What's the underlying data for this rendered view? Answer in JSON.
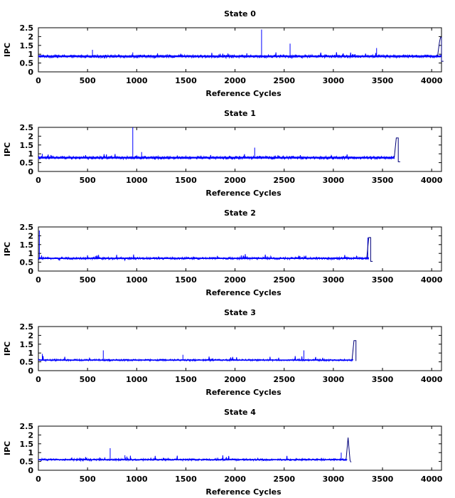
{
  "chart_data": [
    {
      "type": "line",
      "title": "State 0",
      "xlabel": "Reference Cycles",
      "ylabel": "IPC",
      "xlim": [
        0,
        4100
      ],
      "ylim": [
        0,
        2.5
      ],
      "xticks": [
        0,
        500,
        1000,
        1500,
        2000,
        2500,
        3000,
        3500,
        4000
      ],
      "yticks": [
        0,
        0.5,
        1,
        1.5,
        2,
        2.5
      ],
      "series": [
        {
          "name": "IPC",
          "color": "#0000ff",
          "x_end": 4100,
          "base": 0.88,
          "spread": 0.08,
          "spikes": [
            [
              2270,
              2.4
            ],
            [
              2560,
              1.6
            ],
            [
              3440,
              1.35
            ],
            [
              550,
              1.25
            ],
            [
              960,
              1.1
            ]
          ],
          "tail": [
            [
              4060,
              0.9
            ],
            [
              4080,
              1.7
            ],
            [
              4090,
              1.95
            ],
            [
              4100,
              1.95
            ],
            [
              4100,
              0.6
            ],
            [
              4120,
              0.6
            ]
          ]
        }
      ]
    },
    {
      "type": "line",
      "title": "State 1",
      "xlabel": "Reference Cycles",
      "ylabel": "IPC",
      "xlim": [
        0,
        4100
      ],
      "ylim": [
        0,
        2.5
      ],
      "xticks": [
        0,
        500,
        1000,
        1500,
        2000,
        2500,
        3000,
        3500,
        4000
      ],
      "yticks": [
        0,
        0.5,
        1,
        1.5,
        2,
        2.5
      ],
      "series": [
        {
          "name": "IPC",
          "color": "#0000ff",
          "x_end": 3620,
          "base": 0.78,
          "spread": 0.08,
          "spikes": [
            [
              960,
              2.5
            ],
            [
              2200,
              1.35
            ],
            [
              1050,
              1.1
            ],
            [
              40,
              1.0
            ]
          ],
          "tail": [
            [
              3620,
              0.8
            ],
            [
              3640,
              1.9
            ],
            [
              3660,
              1.9
            ],
            [
              3660,
              0.55
            ],
            [
              3680,
              0.55
            ]
          ]
        }
      ]
    },
    {
      "type": "line",
      "title": "State 2",
      "xlabel": "Reference Cycles",
      "ylabel": "IPC",
      "xlim": [
        0,
        4100
      ],
      "ylim": [
        0,
        2.5
      ],
      "xticks": [
        0,
        500,
        1000,
        1500,
        2000,
        2500,
        3000,
        3500,
        4000
      ],
      "yticks": [
        0,
        0.5,
        1,
        1.5,
        2,
        2.5
      ],
      "series": [
        {
          "name": "IPC",
          "color": "#0000ff",
          "x_end": 3360,
          "base": 0.72,
          "spread": 0.06,
          "spikes": [
            [
              10,
              2.3
            ],
            [
              3350,
              1.9
            ]
          ],
          "tail": [
            [
              3340,
              0.75
            ],
            [
              3360,
              1.9
            ],
            [
              3380,
              1.9
            ],
            [
              3380,
              0.55
            ],
            [
              3400,
              0.55
            ]
          ]
        }
      ]
    },
    {
      "type": "line",
      "title": "State 3",
      "xlabel": "Reference Cycles",
      "ylabel": "IPC",
      "xlim": [
        0,
        4100
      ],
      "ylim": [
        0,
        2.5
      ],
      "xticks": [
        0,
        500,
        1000,
        1500,
        2000,
        2500,
        3000,
        3500,
        4000
      ],
      "yticks": [
        0,
        0.5,
        1,
        1.5,
        2,
        2.5
      ],
      "series": [
        {
          "name": "IPC",
          "color": "#0000ff",
          "x_end": 3200,
          "base": 0.6,
          "spread": 0.05,
          "spikes": [
            [
              660,
              1.15
            ],
            [
              2700,
              1.15
            ],
            [
              1470,
              0.9
            ],
            [
              40,
              0.95
            ]
          ],
          "tail": [
            [
              3190,
              0.62
            ],
            [
              3210,
              1.7
            ],
            [
              3230,
              1.7
            ],
            [
              3230,
              0.55
            ]
          ]
        }
      ]
    },
    {
      "type": "line",
      "title": "State 4",
      "xlabel": "Reference Cycles",
      "ylabel": "IPC",
      "xlim": [
        0,
        4100
      ],
      "ylim": [
        0,
        2.5
      ],
      "xticks": [
        0,
        500,
        1000,
        1500,
        2000,
        2500,
        3000,
        3500,
        4000
      ],
      "yticks": [
        0,
        0.5,
        1,
        1.5,
        2,
        2.5
      ],
      "series": [
        {
          "name": "IPC",
          "color": "#0000ff",
          "x_end": 3140,
          "base": 0.6,
          "spread": 0.05,
          "spikes": [
            [
              730,
              1.25
            ],
            [
              3080,
              1.0
            ],
            [
              880,
              0.85
            ]
          ],
          "tail": [
            [
              3130,
              0.65
            ],
            [
              3150,
              1.85
            ],
            [
              3170,
              0.55
            ],
            [
              3180,
              0.45
            ]
          ]
        }
      ]
    }
  ]
}
